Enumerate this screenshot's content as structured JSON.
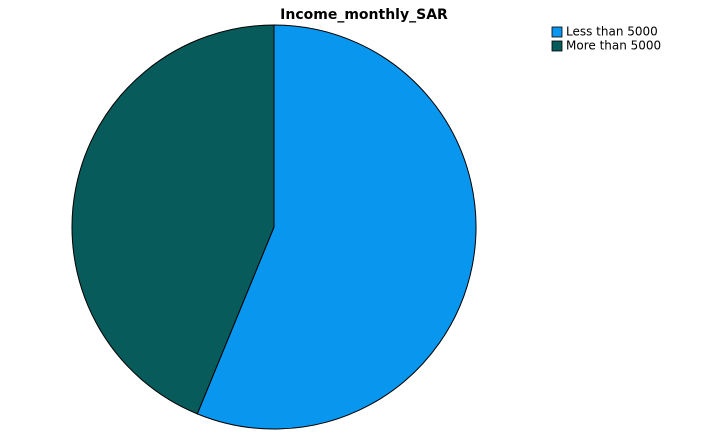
{
  "chart_data": {
    "type": "pie",
    "title": "Income_monthly_SAR",
    "categories": [
      "Less than 5000",
      "More than 5000"
    ],
    "values": [
      56.2,
      43.8
    ],
    "colors": [
      "#0896ef",
      "#075b5b"
    ],
    "legend": "top-right"
  }
}
